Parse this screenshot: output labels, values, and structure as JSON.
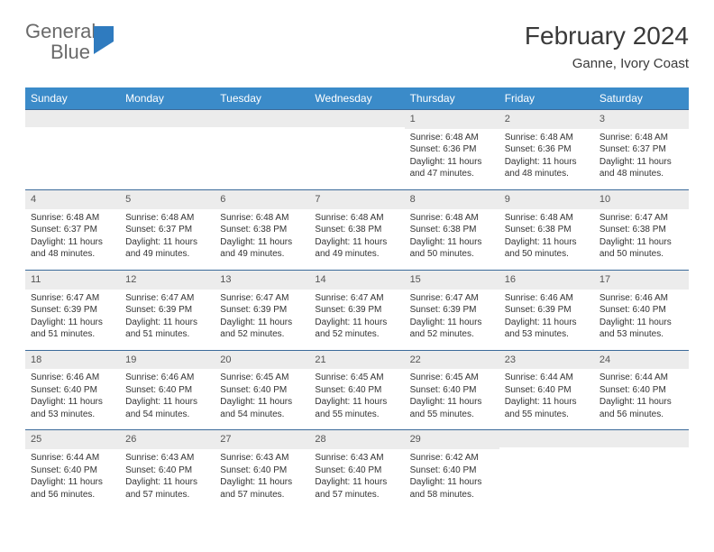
{
  "logo": {
    "word1": "General",
    "word2": "Blue"
  },
  "title": "February 2024",
  "subtitle": "Ganne, Ivory Coast",
  "colors": {
    "header_bg": "#3b8bc9",
    "header_text": "#ffffff",
    "row_border": "#3b6a9a",
    "date_bg": "#ececec",
    "logo_gray": "#6a6a6a",
    "logo_blue": "#2f7bbf"
  },
  "day_headers": [
    "Sunday",
    "Monday",
    "Tuesday",
    "Wednesday",
    "Thursday",
    "Friday",
    "Saturday"
  ],
  "weeks": [
    [
      null,
      null,
      null,
      null,
      {
        "num": "1",
        "sunrise": "Sunrise: 6:48 AM",
        "sunset": "Sunset: 6:36 PM",
        "daylight": "Daylight: 11 hours and 47 minutes."
      },
      {
        "num": "2",
        "sunrise": "Sunrise: 6:48 AM",
        "sunset": "Sunset: 6:36 PM",
        "daylight": "Daylight: 11 hours and 48 minutes."
      },
      {
        "num": "3",
        "sunrise": "Sunrise: 6:48 AM",
        "sunset": "Sunset: 6:37 PM",
        "daylight": "Daylight: 11 hours and 48 minutes."
      }
    ],
    [
      {
        "num": "4",
        "sunrise": "Sunrise: 6:48 AM",
        "sunset": "Sunset: 6:37 PM",
        "daylight": "Daylight: 11 hours and 48 minutes."
      },
      {
        "num": "5",
        "sunrise": "Sunrise: 6:48 AM",
        "sunset": "Sunset: 6:37 PM",
        "daylight": "Daylight: 11 hours and 49 minutes."
      },
      {
        "num": "6",
        "sunrise": "Sunrise: 6:48 AM",
        "sunset": "Sunset: 6:38 PM",
        "daylight": "Daylight: 11 hours and 49 minutes."
      },
      {
        "num": "7",
        "sunrise": "Sunrise: 6:48 AM",
        "sunset": "Sunset: 6:38 PM",
        "daylight": "Daylight: 11 hours and 49 minutes."
      },
      {
        "num": "8",
        "sunrise": "Sunrise: 6:48 AM",
        "sunset": "Sunset: 6:38 PM",
        "daylight": "Daylight: 11 hours and 50 minutes."
      },
      {
        "num": "9",
        "sunrise": "Sunrise: 6:48 AM",
        "sunset": "Sunset: 6:38 PM",
        "daylight": "Daylight: 11 hours and 50 minutes."
      },
      {
        "num": "10",
        "sunrise": "Sunrise: 6:47 AM",
        "sunset": "Sunset: 6:38 PM",
        "daylight": "Daylight: 11 hours and 50 minutes."
      }
    ],
    [
      {
        "num": "11",
        "sunrise": "Sunrise: 6:47 AM",
        "sunset": "Sunset: 6:39 PM",
        "daylight": "Daylight: 11 hours and 51 minutes."
      },
      {
        "num": "12",
        "sunrise": "Sunrise: 6:47 AM",
        "sunset": "Sunset: 6:39 PM",
        "daylight": "Daylight: 11 hours and 51 minutes."
      },
      {
        "num": "13",
        "sunrise": "Sunrise: 6:47 AM",
        "sunset": "Sunset: 6:39 PM",
        "daylight": "Daylight: 11 hours and 52 minutes."
      },
      {
        "num": "14",
        "sunrise": "Sunrise: 6:47 AM",
        "sunset": "Sunset: 6:39 PM",
        "daylight": "Daylight: 11 hours and 52 minutes."
      },
      {
        "num": "15",
        "sunrise": "Sunrise: 6:47 AM",
        "sunset": "Sunset: 6:39 PM",
        "daylight": "Daylight: 11 hours and 52 minutes."
      },
      {
        "num": "16",
        "sunrise": "Sunrise: 6:46 AM",
        "sunset": "Sunset: 6:39 PM",
        "daylight": "Daylight: 11 hours and 53 minutes."
      },
      {
        "num": "17",
        "sunrise": "Sunrise: 6:46 AM",
        "sunset": "Sunset: 6:40 PM",
        "daylight": "Daylight: 11 hours and 53 minutes."
      }
    ],
    [
      {
        "num": "18",
        "sunrise": "Sunrise: 6:46 AM",
        "sunset": "Sunset: 6:40 PM",
        "daylight": "Daylight: 11 hours and 53 minutes."
      },
      {
        "num": "19",
        "sunrise": "Sunrise: 6:46 AM",
        "sunset": "Sunset: 6:40 PM",
        "daylight": "Daylight: 11 hours and 54 minutes."
      },
      {
        "num": "20",
        "sunrise": "Sunrise: 6:45 AM",
        "sunset": "Sunset: 6:40 PM",
        "daylight": "Daylight: 11 hours and 54 minutes."
      },
      {
        "num": "21",
        "sunrise": "Sunrise: 6:45 AM",
        "sunset": "Sunset: 6:40 PM",
        "daylight": "Daylight: 11 hours and 55 minutes."
      },
      {
        "num": "22",
        "sunrise": "Sunrise: 6:45 AM",
        "sunset": "Sunset: 6:40 PM",
        "daylight": "Daylight: 11 hours and 55 minutes."
      },
      {
        "num": "23",
        "sunrise": "Sunrise: 6:44 AM",
        "sunset": "Sunset: 6:40 PM",
        "daylight": "Daylight: 11 hours and 55 minutes."
      },
      {
        "num": "24",
        "sunrise": "Sunrise: 6:44 AM",
        "sunset": "Sunset: 6:40 PM",
        "daylight": "Daylight: 11 hours and 56 minutes."
      }
    ],
    [
      {
        "num": "25",
        "sunrise": "Sunrise: 6:44 AM",
        "sunset": "Sunset: 6:40 PM",
        "daylight": "Daylight: 11 hours and 56 minutes."
      },
      {
        "num": "26",
        "sunrise": "Sunrise: 6:43 AM",
        "sunset": "Sunset: 6:40 PM",
        "daylight": "Daylight: 11 hours and 57 minutes."
      },
      {
        "num": "27",
        "sunrise": "Sunrise: 6:43 AM",
        "sunset": "Sunset: 6:40 PM",
        "daylight": "Daylight: 11 hours and 57 minutes."
      },
      {
        "num": "28",
        "sunrise": "Sunrise: 6:43 AM",
        "sunset": "Sunset: 6:40 PM",
        "daylight": "Daylight: 11 hours and 57 minutes."
      },
      {
        "num": "29",
        "sunrise": "Sunrise: 6:42 AM",
        "sunset": "Sunset: 6:40 PM",
        "daylight": "Daylight: 11 hours and 58 minutes."
      },
      null,
      null
    ]
  ]
}
